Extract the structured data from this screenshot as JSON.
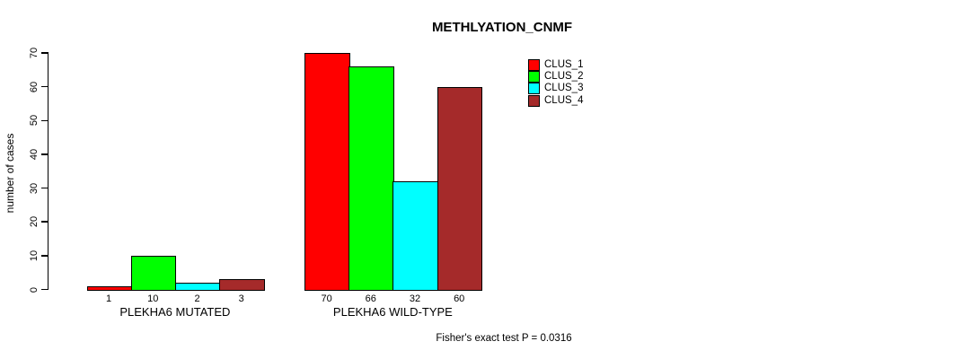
{
  "chart_data": {
    "type": "bar",
    "title": "METHLYATION_CNMF",
    "ylabel": "number of cases",
    "xlabel": "",
    "ylim": [
      0,
      70
    ],
    "yticks": [
      0,
      10,
      20,
      30,
      40,
      50,
      60,
      70
    ],
    "categories": [
      "PLEKHA6 MUTATED",
      "PLEKHA6 WILD-TYPE"
    ],
    "series": [
      {
        "name": "CLUS_1",
        "color": "#FF0000",
        "values": [
          1,
          70
        ]
      },
      {
        "name": "CLUS_2",
        "color": "#00FF00",
        "values": [
          10,
          66
        ]
      },
      {
        "name": "CLUS_3",
        "color": "#00FFFF",
        "values": [
          2,
          32
        ]
      },
      {
        "name": "CLUS_4",
        "color": "#A52A2A",
        "values": [
          3,
          60
        ]
      }
    ],
    "bar_value_labels": [
      [
        "1",
        "10",
        "2",
        "3"
      ],
      [
        "70",
        "66",
        "32",
        "60"
      ]
    ],
    "annotation": "Fisher's exact test P = 0.0316",
    "legend_position": "top-right",
    "grid": false,
    "axis_color": "#000000",
    "background_color": "#FFFFFF"
  }
}
